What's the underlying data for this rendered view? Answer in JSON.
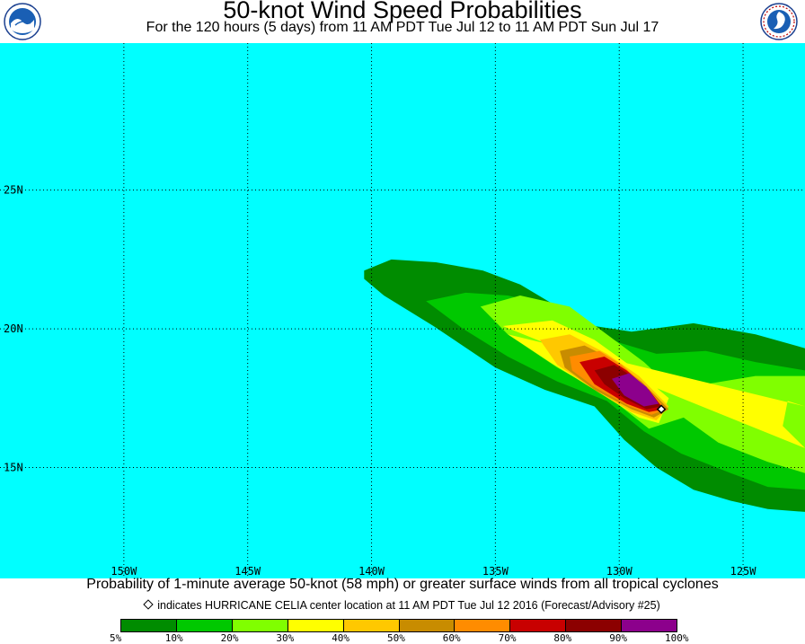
{
  "header": {
    "title": "50-knot Wind Speed Probabilities",
    "subtitle": "For the 120 hours (5 days) from 11 AM PDT Tue Jul 12 to 11 AM PDT Sun Jul 17"
  },
  "logos": {
    "left": {
      "name": "NOAA",
      "icon": "noaa-logo"
    },
    "right": {
      "name": "NATIONAL WEATHER SERVICE",
      "icon": "nws-logo"
    }
  },
  "map": {
    "ocean_color": "#00ffff",
    "lon_range": [
      -155,
      -122.5
    ],
    "lat_range": [
      11,
      30.3
    ],
    "longitudes": [
      {
        "value": -150,
        "label": "150W"
      },
      {
        "value": -145,
        "label": "145W"
      },
      {
        "value": -140,
        "label": "140W"
      },
      {
        "value": -135,
        "label": "135W"
      },
      {
        "value": -130,
        "label": "130W"
      },
      {
        "value": -125,
        "label": "125W"
      }
    ],
    "latitudes": [
      {
        "value": 25,
        "label": "25N"
      },
      {
        "value": 20,
        "label": "20N"
      },
      {
        "value": 15,
        "label": "15N"
      }
    ],
    "storm_center": {
      "lon": -128.3,
      "lat": 17.1
    },
    "probability_contours": [
      {
        "level": 5,
        "color": "#008c00",
        "points": [
          [
            -140.3,
            22.1
          ],
          [
            -139.2,
            22.5
          ],
          [
            -137.4,
            22.4
          ],
          [
            -135.5,
            22.1
          ],
          [
            -134,
            21.6
          ],
          [
            -132.5,
            20.8
          ],
          [
            -131,
            20.1
          ],
          [
            -129.5,
            19.9
          ],
          [
            -127,
            20.2
          ],
          [
            -124.5,
            19.8
          ],
          [
            -122.5,
            19.3
          ],
          [
            -122.5,
            13.4
          ],
          [
            -124,
            13.5
          ],
          [
            -125.5,
            13.8
          ],
          [
            -127,
            14.2
          ],
          [
            -128.5,
            15
          ],
          [
            -129.8,
            16
          ],
          [
            -131,
            17.2
          ],
          [
            -133,
            17.8
          ],
          [
            -135,
            18.6
          ],
          [
            -137.5,
            20.1
          ],
          [
            -139.5,
            21.2
          ],
          [
            -140.3,
            21.8
          ]
        ]
      },
      {
        "level": 10,
        "color": "#00c800",
        "points": [
          [
            -137.8,
            21
          ],
          [
            -136.2,
            21.3
          ],
          [
            -134.5,
            21.2
          ],
          [
            -133,
            20.9
          ],
          [
            -131.5,
            20.2
          ],
          [
            -130,
            19.5
          ],
          [
            -128.5,
            19.1
          ],
          [
            -126.5,
            19.2
          ],
          [
            -124.5,
            18.8
          ],
          [
            -122.5,
            18.5
          ],
          [
            -122.5,
            14.2
          ],
          [
            -124,
            14.3
          ],
          [
            -125.5,
            14.8
          ],
          [
            -127.5,
            15.5
          ],
          [
            -129,
            16.3
          ],
          [
            -130.5,
            17.4
          ],
          [
            -132.5,
            18.1
          ],
          [
            -134.5,
            19
          ],
          [
            -136.3,
            20
          ]
        ]
      },
      {
        "level": 20,
        "color": "#80ff00",
        "points": [
          [
            -135.6,
            20.8
          ],
          [
            -134,
            21.2
          ],
          [
            -132,
            20.8
          ],
          [
            -130.5,
            19.8
          ],
          [
            -129,
            18.8
          ],
          [
            -127.8,
            17.8
          ],
          [
            -126.5,
            18
          ],
          [
            -124.5,
            18.3
          ],
          [
            -122.5,
            18.3
          ],
          [
            -122.5,
            14.8
          ],
          [
            -124,
            15.2
          ],
          [
            -126,
            15.9
          ],
          [
            -127.4,
            16.8
          ],
          [
            -128.8,
            16.4
          ],
          [
            -130.5,
            17.6
          ],
          [
            -132.5,
            18.6
          ],
          [
            -134.5,
            19.8
          ]
        ]
      },
      {
        "level": 30,
        "color": "#ffff00",
        "points": [
          [
            -134.7,
            20.1
          ],
          [
            -132.7,
            20.3
          ],
          [
            -131,
            19.6
          ],
          [
            -129.6,
            18.7
          ],
          [
            -128,
            17.5
          ],
          [
            -128.4,
            16.6
          ],
          [
            -129.2,
            16.8
          ],
          [
            -131,
            17.8
          ],
          [
            -132.8,
            18.8
          ],
          [
            -134.5,
            19.8
          ],
          [
            -122.5,
            17.2
          ],
          [
            -123.2,
            17.4
          ],
          [
            -123.4,
            16.5
          ],
          [
            -122.5,
            15.7
          ]
        ]
      },
      {
        "level": 40,
        "color": "#ffc800",
        "points": [
          [
            -133.2,
            19.6
          ],
          [
            -132,
            19.8
          ],
          [
            -130.5,
            19.1
          ],
          [
            -129.2,
            18.3
          ],
          [
            -128,
            17.2
          ],
          [
            -128.5,
            16.7
          ],
          [
            -129.5,
            17
          ],
          [
            -131,
            17.8
          ],
          [
            -132.5,
            18.7
          ]
        ]
      },
      {
        "level": 50,
        "color": "#c88c00",
        "points": [
          [
            -132.4,
            19.2
          ],
          [
            -131.4,
            19.4
          ],
          [
            -130.3,
            18.9
          ],
          [
            -129.1,
            18.1
          ],
          [
            -128,
            17.1
          ],
          [
            -128.6,
            16.8
          ],
          [
            -129.5,
            17.1
          ],
          [
            -131,
            17.8
          ],
          [
            -132.2,
            18.6
          ]
        ]
      },
      {
        "level": 60,
        "color": "#ff8c00",
        "points": [
          [
            -132,
            19
          ],
          [
            -130.8,
            19.2
          ],
          [
            -129.9,
            18.7
          ],
          [
            -128.9,
            17.9
          ],
          [
            -128.1,
            17.1
          ],
          [
            -128.7,
            16.9
          ],
          [
            -129.6,
            17.2
          ],
          [
            -131,
            17.9
          ],
          [
            -131.9,
            18.5
          ]
        ]
      },
      {
        "level": 70,
        "color": "#c80000",
        "points": [
          [
            -131.6,
            18.8
          ],
          [
            -130.6,
            19
          ],
          [
            -129.7,
            18.5
          ],
          [
            -128.8,
            17.8
          ],
          [
            -128.2,
            17.1
          ],
          [
            -128.8,
            17
          ],
          [
            -129.7,
            17.3
          ],
          [
            -131,
            18
          ]
        ]
      },
      {
        "level": 80,
        "color": "#8c0000",
        "points": [
          [
            -131,
            18.5
          ],
          [
            -130.2,
            18.7
          ],
          [
            -129.5,
            18.3
          ],
          [
            -128.7,
            17.6
          ],
          [
            -128.3,
            17.2
          ],
          [
            -128.9,
            17.1
          ],
          [
            -129.8,
            17.5
          ],
          [
            -130.6,
            18
          ]
        ]
      },
      {
        "level": 90,
        "color": "#8c008c",
        "points": [
          [
            -130.3,
            18.2
          ],
          [
            -129.6,
            18.4
          ],
          [
            -128.9,
            17.9
          ],
          [
            -128.4,
            17.3
          ],
          [
            -129,
            17.2
          ],
          [
            -129.8,
            17.6
          ]
        ]
      }
    ]
  },
  "caption": "Probability of 1-minute average 50-knot (58 mph) or greater surface winds from all tropical cyclones",
  "marker_legend": {
    "icon": "diamond-icon",
    "text": "indicates HURRICANE CELIA center location at 11 AM PDT Tue Jul 12 2016 (Forecast/Advisory #25)"
  },
  "color_scale": {
    "colors": [
      "#008c00",
      "#00c800",
      "#80ff00",
      "#ffff00",
      "#ffc800",
      "#c88c00",
      "#ff8c00",
      "#c80000",
      "#8c0000",
      "#8c008c"
    ],
    "labels": [
      "5%",
      "10%",
      "20%",
      "30%",
      "40%",
      "50%",
      "60%",
      "70%",
      "80%",
      "90%",
      "100%"
    ]
  }
}
